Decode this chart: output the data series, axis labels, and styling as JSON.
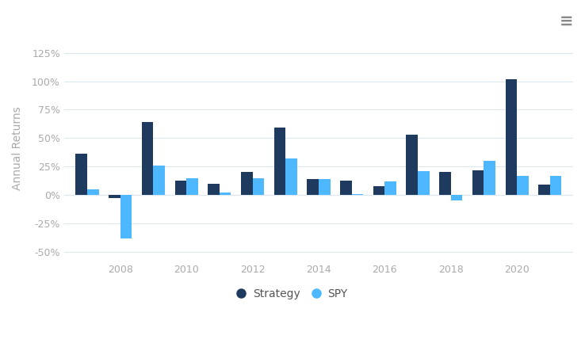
{
  "years": [
    2007,
    2008,
    2009,
    2010,
    2011,
    2012,
    2013,
    2014,
    2015,
    2016,
    2017,
    2018,
    2019,
    2020,
    2021
  ],
  "strategy": [
    36,
    -3,
    64,
    13,
    10,
    20,
    59,
    14,
    13,
    8,
    53,
    20,
    22,
    102,
    9
  ],
  "spy": [
    5,
    -38,
    26,
    15,
    2,
    15,
    32,
    14,
    1,
    12,
    21,
    -5,
    30,
    17,
    17
  ],
  "strategy_color": "#1e3a5f",
  "spy_color": "#4db8ff",
  "ylabel": "Annual Returns",
  "yticks": [
    -50,
    -25,
    0,
    25,
    50,
    75,
    100,
    125
  ],
  "ytick_labels": [
    "-50%",
    "-25%",
    "0%",
    "25%",
    "50%",
    "75%",
    "100%",
    "125%"
  ],
  "xtick_years": [
    2008,
    2010,
    2012,
    2014,
    2016,
    2018,
    2020
  ],
  "ylim": [
    -58,
    140
  ],
  "background_color": "#ffffff",
  "grid_color": "#dce8f0",
  "bar_width": 0.35,
  "legend_strategy": "Strategy",
  "legend_spy": "SPY"
}
